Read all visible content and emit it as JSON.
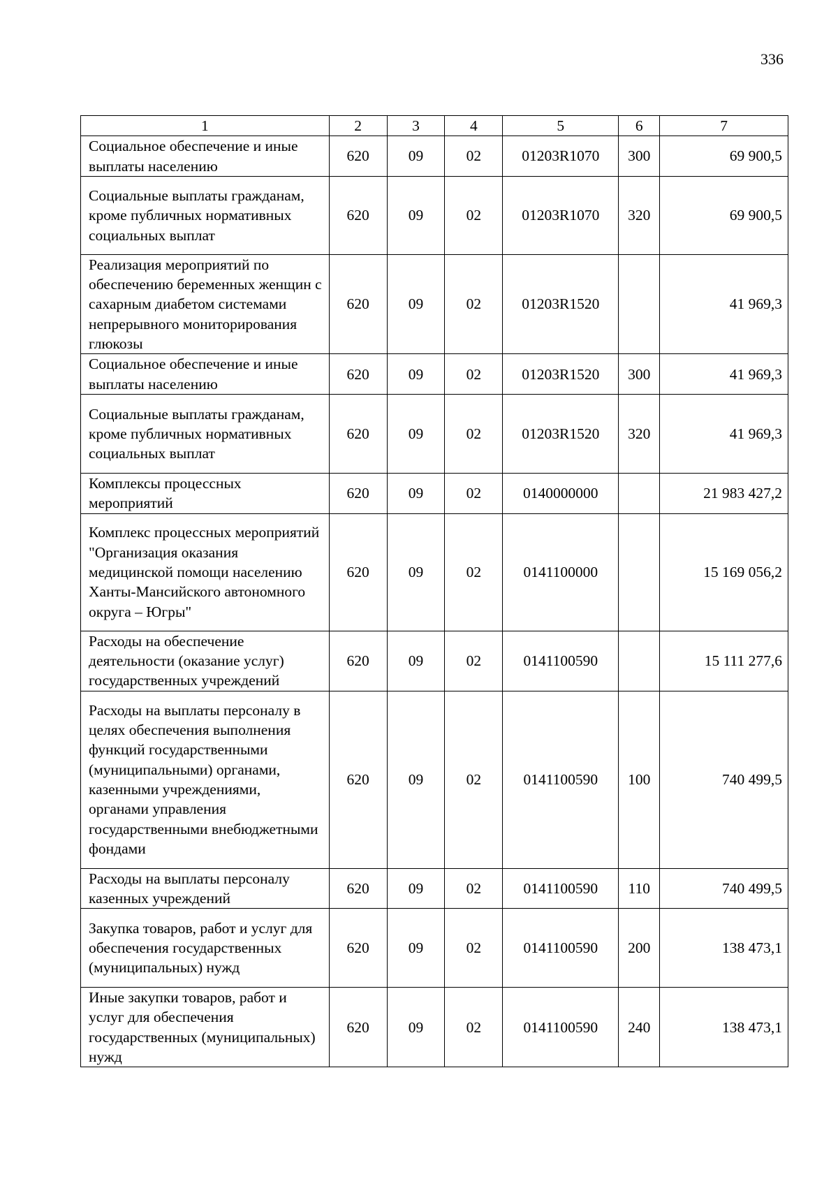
{
  "page_number": "336",
  "table": {
    "headers": [
      "1",
      "2",
      "3",
      "4",
      "5",
      "6",
      "7"
    ],
    "rows": [
      {
        "name": "Социальное обеспечение и иные выплаты населению",
        "c2": "620",
        "c3": "09",
        "c4": "02",
        "c5": "01203R1070",
        "c6": "300",
        "c7": "69 900,5"
      },
      {
        "name": "Социальные выплаты гражданам, кроме публичных нормативных социальных выплат",
        "c2": "620",
        "c3": "09",
        "c4": "02",
        "c5": "01203R1070",
        "c6": "320",
        "c7": "69 900,5"
      },
      {
        "name": "Реализация мероприятий по обеспечению беременных женщин с сахарным диабетом системами непрерывного мониторирования глюкозы",
        "c2": "620",
        "c3": "09",
        "c4": "02",
        "c5": "01203R1520",
        "c6": "",
        "c7": "41 969,3"
      },
      {
        "name": "Социальное обеспечение и иные выплаты населению",
        "c2": "620",
        "c3": "09",
        "c4": "02",
        "c5": "01203R1520",
        "c6": "300",
        "c7": "41 969,3"
      },
      {
        "name": "Социальные выплаты гражданам, кроме публичных нормативных социальных выплат",
        "c2": "620",
        "c3": "09",
        "c4": "02",
        "c5": "01203R1520",
        "c6": "320",
        "c7": "41 969,3"
      },
      {
        "name": "Комплексы процессных мероприятий",
        "c2": "620",
        "c3": "09",
        "c4": "02",
        "c5": "0140000000",
        "c6": "",
        "c7": "21 983 427,2"
      },
      {
        "name": "Комплекс процессных мероприятий \"Организация оказания медицинской помощи населению Ханты-Мансийского автономного округа – Югры\"",
        "c2": "620",
        "c3": "09",
        "c4": "02",
        "c5": "0141100000",
        "c6": "",
        "c7": "15 169 056,2"
      },
      {
        "name": "Расходы на обеспечение деятельности (оказание услуг) государственных учреждений",
        "c2": "620",
        "c3": "09",
        "c4": "02",
        "c5": "0141100590",
        "c6": "",
        "c7": "15 111 277,6"
      },
      {
        "name": "Расходы на выплаты персоналу в целях обеспечения выполнения функций государственными (муниципальными) органами, казенными учреждениями, органами управления государственными внебюджетными фондами",
        "c2": "620",
        "c3": "09",
        "c4": "02",
        "c5": "0141100590",
        "c6": "100",
        "c7": "740 499,5"
      },
      {
        "name": "Расходы на выплаты персоналу казенных учреждений",
        "c2": "620",
        "c3": "09",
        "c4": "02",
        "c5": "0141100590",
        "c6": "110",
        "c7": "740 499,5"
      },
      {
        "name": "Закупка товаров, работ и услуг для обеспечения государственных (муниципальных) нужд",
        "c2": "620",
        "c3": "09",
        "c4": "02",
        "c5": "0141100590",
        "c6": "200",
        "c7": "138 473,1"
      },
      {
        "name": "Иные закупки товаров, работ и услуг для обеспечения государственных (муниципальных) нужд",
        "c2": "620",
        "c3": "09",
        "c4": "02",
        "c5": "0141100590",
        "c6": "240",
        "c7": "138 473,1"
      }
    ]
  }
}
